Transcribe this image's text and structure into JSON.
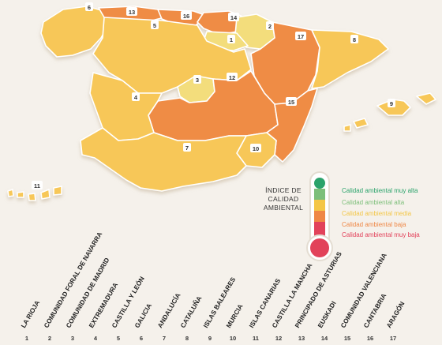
{
  "regions": [
    {
      "num": "1",
      "name": "LA RIOJA",
      "color": "#f3dd7c"
    },
    {
      "num": "2",
      "name": "COMUNIDAD FORAL DE NAVARRA",
      "color": "#f3dd7c"
    },
    {
      "num": "3",
      "name": "COMUNIDAD DE MADRID",
      "color": "#f3dd7c"
    },
    {
      "num": "4",
      "name": "EXTREMADURA",
      "color": "#f7c758"
    },
    {
      "num": "5",
      "name": "CASTILLA Y LEÓN",
      "color": "#f7c758"
    },
    {
      "num": "6",
      "name": "GALICIA",
      "color": "#f7c758"
    },
    {
      "num": "7",
      "name": "ANDALUCÍA",
      "color": "#f7c758"
    },
    {
      "num": "8",
      "name": "CATALUÑA",
      "color": "#f7c758"
    },
    {
      "num": "9",
      "name": "ISLAS BALEARES",
      "color": "#f7c758"
    },
    {
      "num": "10",
      "name": "MURCIA",
      "color": "#f7c758"
    },
    {
      "num": "11",
      "name": "ISLAS CANARIAS",
      "color": "#f7c758"
    },
    {
      "num": "12",
      "name": "CASTILLA LA MANCHA",
      "color": "#ef8c45"
    },
    {
      "num": "13",
      "name": "PRINCIPADO DE ASTURIAS",
      "color": "#ef8c45"
    },
    {
      "num": "14",
      "name": "EUSKADI",
      "color": "#ef8c45"
    },
    {
      "num": "15",
      "name": "COMUNIDAD VALENCIANA",
      "color": "#ef8c45"
    },
    {
      "num": "16",
      "name": "CANTABRIA",
      "color": "#ef8c45"
    },
    {
      "num": "17",
      "name": "ARAGÓN",
      "color": "#ef8c45"
    }
  ],
  "legend": {
    "title": "ÍNDICE DE CALIDAD AMBIENTAL",
    "items": [
      {
        "label": "Calidad ambiental muy alta",
        "color": "#2aa36b"
      },
      {
        "label": "Calidad ambiental alta",
        "color": "#7dbf7a"
      },
      {
        "label": "Calidad ambiental media",
        "color": "#f4c646"
      },
      {
        "label": "Calidad ambiental baja",
        "color": "#ef8745"
      },
      {
        "label": "Calidad ambiental muy baja",
        "color": "#e2425a"
      }
    ]
  },
  "sea_color": "#f5f1eb"
}
